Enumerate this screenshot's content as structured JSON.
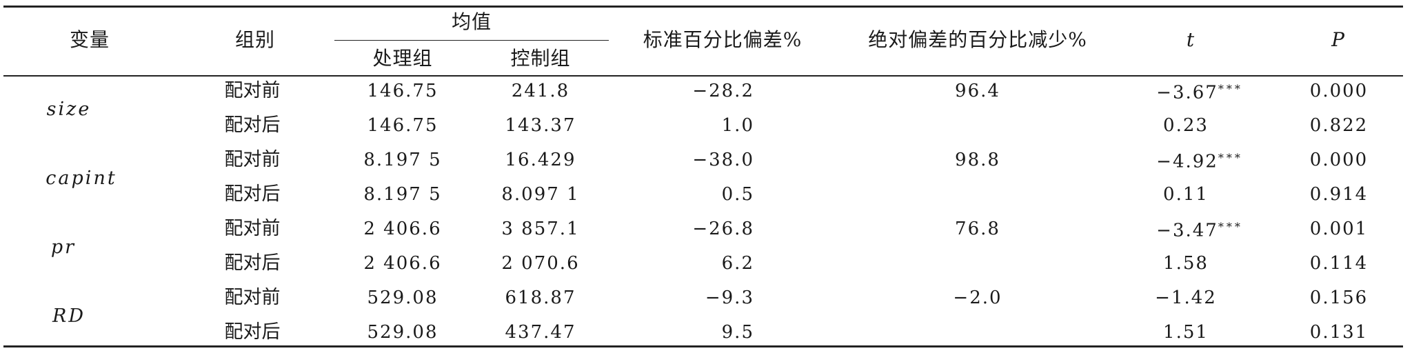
{
  "table": {
    "headers": {
      "variable": "变量",
      "group": "组别",
      "mean": "均值",
      "treated": "处理组",
      "control": "控制组",
      "std_bias": "标准百分比偏差%",
      "abs_bias_reduction": "绝对偏差的百分比减少%",
      "t": "t",
      "p": "P"
    },
    "rows": [
      {
        "variable": "size",
        "group": "配对前",
        "treated": "146.75",
        "control": "241.8",
        "std_bias": "−28.2",
        "reduction": "96.4",
        "t": "−3.67",
        "stars": "***",
        "p": "0.000"
      },
      {
        "variable": "",
        "group": "配对后",
        "treated": "146.75",
        "control": "143.37",
        "std_bias": "1.0",
        "reduction": "",
        "t": "0.23",
        "stars": "",
        "p": "0.822"
      },
      {
        "variable": "capint",
        "group": "配对前",
        "treated": "8.197 5",
        "control": "16.429",
        "std_bias": "−38.0",
        "reduction": "98.8",
        "t": "−4.92",
        "stars": "***",
        "p": "0.000"
      },
      {
        "variable": "",
        "group": "配对后",
        "treated": "8.197 5",
        "control": "8.097 1",
        "std_bias": "0.5",
        "reduction": "",
        "t": "0.11",
        "stars": "",
        "p": "0.914"
      },
      {
        "variable": "pr",
        "group": "配对前",
        "treated": "2 406.6",
        "control": "3 857.1",
        "std_bias": "−26.8",
        "reduction": "76.8",
        "t": "−3.47",
        "stars": "***",
        "p": "0.001"
      },
      {
        "variable": "",
        "group": "配对后",
        "treated": "2 406.6",
        "control": "2 070.6",
        "std_bias": "6.2",
        "reduction": "",
        "t": "1.58",
        "stars": "",
        "p": "0.114"
      },
      {
        "variable": "RD",
        "group": "配对前",
        "treated": "529.08",
        "control": "618.87",
        "std_bias": "−9.3",
        "reduction": "−2.0",
        "t": "−1.42",
        "stars": "",
        "p": "0.156"
      },
      {
        "variable": "",
        "group": "配对后",
        "treated": "529.08",
        "control": "437.47",
        "std_bias": "9.5",
        "reduction": "",
        "t": "1.51",
        "stars": "",
        "p": "0.131"
      }
    ]
  }
}
